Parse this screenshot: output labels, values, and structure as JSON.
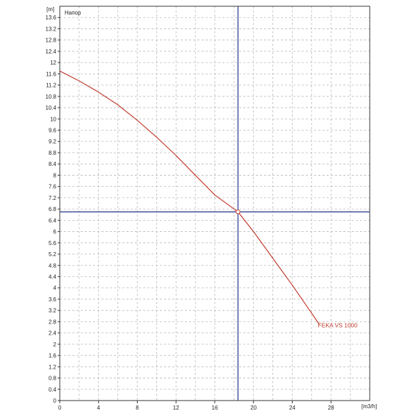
{
  "chart_data": {
    "type": "line",
    "title": "Напор",
    "y_unit": "[m]",
    "x_unit": "[m3/h]",
    "xlim": [
      0,
      32
    ],
    "ylim": [
      0,
      14
    ],
    "x_ticks": [
      0,
      4,
      8,
      12,
      16,
      20,
      24,
      28
    ],
    "x_tick_labels": [
      "0",
      "4",
      "8",
      "12",
      "16",
      "20",
      "24",
      "28"
    ],
    "y_ticks": [
      0,
      0.4,
      0.8,
      1.2,
      1.6,
      2,
      2.4,
      2.8,
      3.2,
      3.6,
      4,
      4.4,
      4.8,
      5.2,
      5.6,
      6,
      6.4,
      6.8,
      7.2,
      7.6,
      8,
      8.4,
      8.8,
      9.2,
      9.6,
      10,
      10.4,
      10.8,
      11.2,
      11.6,
      12,
      12.4,
      12.8,
      13.2,
      13.6
    ],
    "y_tick_labels": [
      "0",
      "0.4",
      "0.8",
      "1.2",
      "1.6",
      "2",
      "2.4",
      "2.8",
      "3.2",
      "3.6",
      "4",
      "4.4",
      "4.8",
      "5.2",
      "5.6",
      "6",
      "6.4",
      "6.8",
      "7.2",
      "7.6",
      "8",
      "8.4",
      "8.8",
      "9.2",
      "9.6",
      "10",
      "10.4",
      "10.8",
      "11.2",
      "11.6",
      "12",
      "12.4",
      "12.8",
      "13.2",
      "13.6"
    ],
    "grid": true,
    "series": [
      {
        "name": "FEKA VS 1000",
        "color": "#c0392b",
        "x": [
          0,
          2,
          4,
          6,
          8,
          10,
          12,
          14,
          16,
          18.4,
          20,
          22,
          24,
          26,
          26.8
        ],
        "y": [
          11.7,
          11.35,
          10.95,
          10.5,
          9.95,
          9.35,
          8.7,
          8.0,
          7.3,
          6.7,
          6.0,
          5.05,
          4.1,
          3.1,
          2.7
        ]
      }
    ],
    "crosshair": {
      "x": 18.4,
      "y": 6.7,
      "color": "#2c3e8f"
    }
  }
}
